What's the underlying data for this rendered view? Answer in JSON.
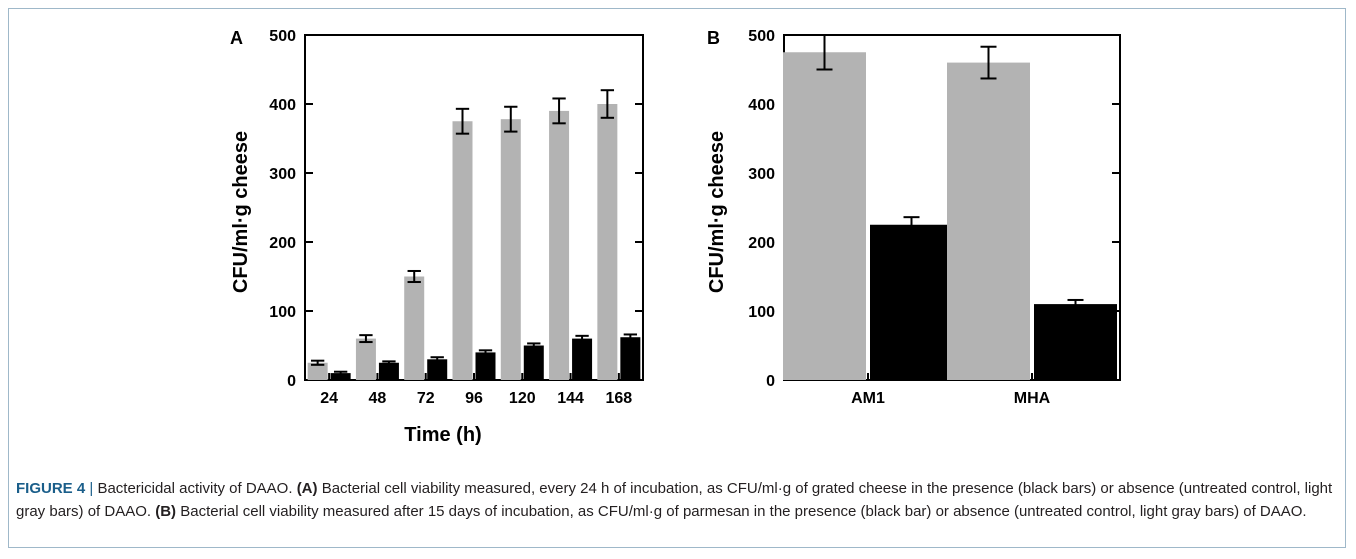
{
  "colors": {
    "presence": "#000000",
    "absence": "#b3b3b3",
    "caption_accent": "#1a5e8a",
    "frame": "#9fb8c9"
  },
  "chart_data": [
    {
      "type": "bar",
      "panel": "A",
      "xlabel": "Time (h)",
      "ylabel": "CFU/ml·g cheese",
      "ylim": [
        0,
        500
      ],
      "yticks": [
        0,
        100,
        200,
        300,
        400,
        500
      ],
      "categories": [
        "24",
        "48",
        "72",
        "96",
        "120",
        "144",
        "168"
      ],
      "series": [
        {
          "color": "#b3b3b3",
          "values": [
            25,
            60,
            150,
            375,
            378,
            390,
            400
          ],
          "errors": [
            3,
            5,
            8,
            18,
            18,
            18,
            20
          ]
        },
        {
          "color": "#000000",
          "values": [
            10,
            25,
            30,
            40,
            50,
            60,
            62
          ],
          "errors": [
            2,
            2,
            3,
            3,
            3,
            4,
            4
          ]
        }
      ],
      "grid": false,
      "legend": "none"
    },
    {
      "type": "bar",
      "panel": "B",
      "xlabel": "",
      "ylabel": "CFU/ml·g cheese",
      "ylim": [
        0,
        500
      ],
      "yticks": [
        0,
        100,
        200,
        300,
        400,
        500
      ],
      "categories": [
        "AM1",
        "MHA"
      ],
      "series": [
        {
          "color": "#b3b3b3",
          "values": [
            475,
            460
          ],
          "errors": [
            25,
            23
          ]
        },
        {
          "color": "#000000",
          "values": [
            225,
            110
          ],
          "errors": [
            11,
            6
          ]
        }
      ],
      "grid": false,
      "legend": "none"
    }
  ],
  "caption": {
    "figure_number": "FIGURE 4",
    "separator": "|",
    "title": "Bactericidal activity of DAAO.",
    "part_a_label": "(A)",
    "part_a_text": "Bacterial cell viability measured, every 24 h of incubation, as CFU/ml·g of grated cheese in the presence (black bars) or absence (untreated control, light gray bars) of DAAO.",
    "part_b_label": "(B)",
    "part_b_text": "Bacterial cell viability measured after 15 days of incubation, as CFU/ml·g of parmesan in the presence (black bar) or absence (untreated control, light gray bars) of DAAO."
  }
}
